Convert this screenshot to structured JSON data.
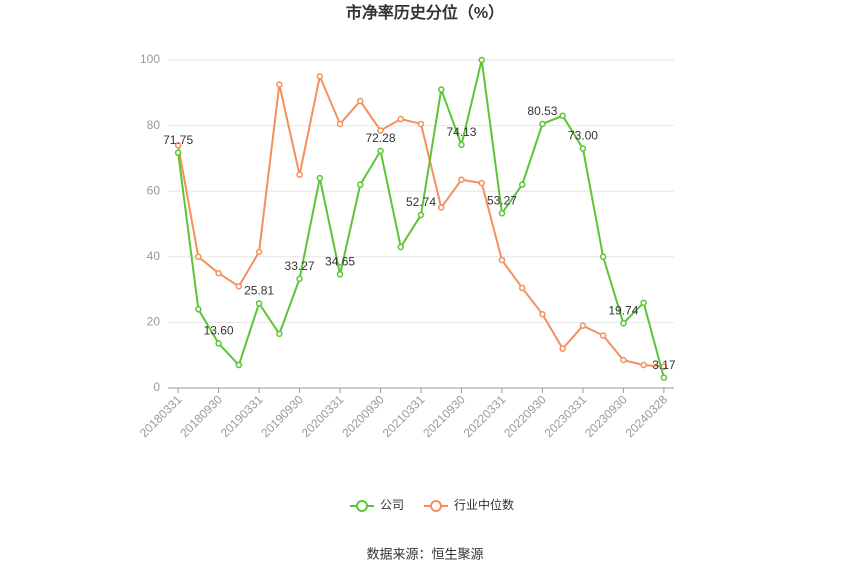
{
  "chart_data": {
    "type": "line",
    "title": "市净率历史分位（%）",
    "categories": [
      "20180331",
      null,
      "20180930",
      null,
      "20190331",
      null,
      "20190930",
      null,
      "20200331",
      null,
      "20200930",
      null,
      "20210331",
      null,
      "20210930",
      null,
      "20220331",
      null,
      "20220930",
      null,
      "20230331",
      null,
      "20230930",
      null,
      "20240328"
    ],
    "series": [
      {
        "name": "公司",
        "color": "#5cc437",
        "values": [
          71.75,
          24,
          13.6,
          7,
          25.81,
          16.5,
          33.27,
          64,
          34.65,
          62,
          72.28,
          43,
          52.74,
          91,
          74.13,
          100,
          53.27,
          62,
          80.53,
          83,
          73,
          40,
          19.74,
          26,
          3.17
        ],
        "value_labels": [
          "71.75",
          null,
          "13.60",
          null,
          "25.81",
          null,
          "33.27",
          null,
          "34.65",
          null,
          "72.28",
          null,
          "52.74",
          null,
          "74.13",
          null,
          "53.27",
          null,
          "80.53",
          null,
          "73.00",
          null,
          "19.74",
          null,
          "3.17"
        ]
      },
      {
        "name": "行业中位数",
        "color": "#f4905c",
        "values": [
          74,
          40,
          35,
          31,
          41.5,
          92.5,
          65,
          95,
          80.5,
          87.5,
          78.5,
          82,
          80.5,
          55,
          63.5,
          62.5,
          39,
          30.5,
          22.5,
          12,
          19,
          16,
          8.5,
          7,
          6.5
        ]
      }
    ],
    "ylim": [
      0,
      100
    ],
    "yticks": [
      0,
      20,
      40,
      60,
      80,
      100
    ],
    "grid": true,
    "legend": "bottom",
    "source": "数据来源：恒生聚源"
  }
}
